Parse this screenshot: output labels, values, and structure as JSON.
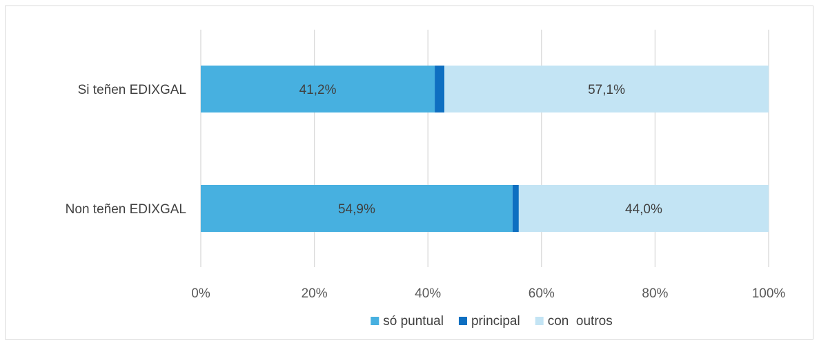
{
  "chart_data": {
    "type": "bar",
    "orientation": "horizontal",
    "stacked": "percent",
    "categories": [
      "Si teñen EDIXGAL",
      "Non teñen EDIXGAL"
    ],
    "series": [
      {
        "name": "só puntual",
        "values": [
          41.2,
          54.9
        ],
        "labels": [
          "41,2%",
          "54,9%"
        ],
        "color": "#47B0E0"
      },
      {
        "name": "principal",
        "values": [
          1.7,
          1.1
        ],
        "labels": [
          "",
          ""
        ],
        "color": "#0E6FC1"
      },
      {
        "name": "con  outros",
        "values": [
          57.1,
          44.0
        ],
        "labels": [
          "57,1%",
          "44,0%"
        ],
        "color": "#C3E4F4"
      }
    ],
    "xaxis": {
      "min": 0,
      "max": 100,
      "ticks": [
        0,
        20,
        40,
        60,
        80,
        100
      ],
      "tick_labels": [
        "0%",
        "20%",
        "40%",
        "60%",
        "80%",
        "100%"
      ]
    },
    "grid": "vertical",
    "legend_position": "bottom"
  }
}
